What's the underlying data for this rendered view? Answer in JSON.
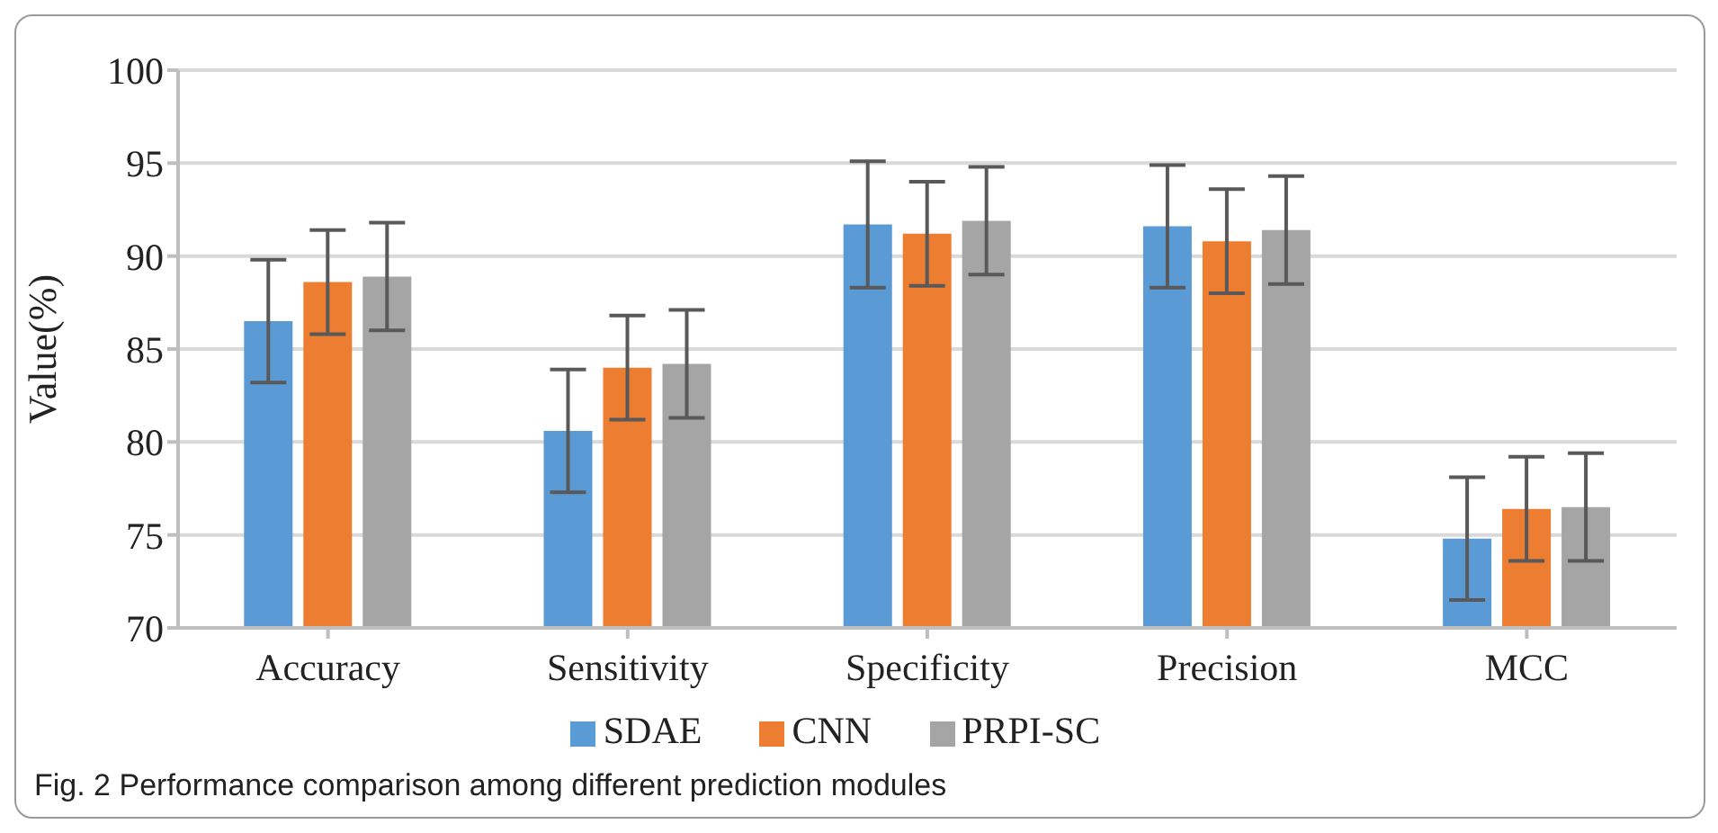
{
  "chart_data": {
    "type": "bar",
    "ylabel": "Value(%)",
    "categories": [
      "Accuracy",
      "Sensitivity",
      "Specificity",
      "Precision",
      "MCC"
    ],
    "series": [
      {
        "name": "SDAE",
        "color": "#5b9bd5",
        "values": [
          86.5,
          80.6,
          91.7,
          91.6,
          74.8
        ],
        "errors": [
          3.3,
          3.3,
          3.4,
          3.3,
          3.3
        ]
      },
      {
        "name": "CNN",
        "color": "#ed7d31",
        "values": [
          88.6,
          84.0,
          91.2,
          90.8,
          76.4
        ],
        "errors": [
          2.8,
          2.8,
          2.8,
          2.8,
          2.8
        ]
      },
      {
        "name": "PRPI-SC",
        "color": "#a5a5a5",
        "values": [
          88.9,
          84.2,
          91.9,
          91.4,
          76.5
        ],
        "errors": [
          2.9,
          2.9,
          2.9,
          2.9,
          2.9
        ]
      }
    ],
    "ylim": [
      70,
      100
    ],
    "yticks": [
      70,
      75,
      80,
      85,
      90,
      95,
      100
    ],
    "grid": "y",
    "legend": "bottom",
    "annotations": [
      "Fig. 2  Performance comparison among different prediction modules"
    ]
  }
}
